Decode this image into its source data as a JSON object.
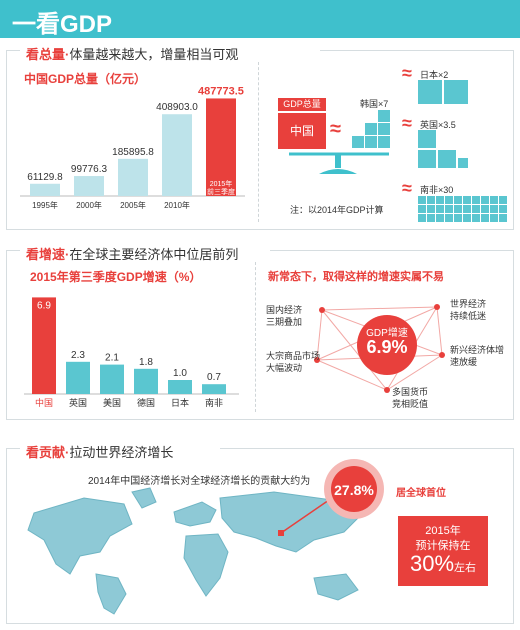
{
  "header": {
    "title": "一看GDP"
  },
  "section1": {
    "tag": "看总量",
    "dot": "·",
    "subtitle": "体量越来越大，增量相当可观",
    "chart_title": "中国GDP总量（亿元）",
    "note": "注：以2014年GDP计算",
    "gdp_label": "GDP总量",
    "china_label": "中国",
    "korea_label": "韩国×7",
    "comparisons": [
      {
        "label": "日本×2"
      },
      {
        "label": "英国×3.5"
      },
      {
        "label": "南非×30"
      }
    ]
  },
  "section2": {
    "tag": "看增速",
    "dot": "·",
    "subtitle": "在全球主要经济体中位居前列",
    "chart_title": "2015年第三季度GDP增速（%）",
    "right_title": "新常态下，取得这样的增速实属不易",
    "center_label": "GDP增速",
    "center_value": "6.9%",
    "factors": [
      "国内经济三期叠加",
      "世界经济持续低迷",
      "大宗商品市场大幅波动",
      "新兴经济体增速放缓",
      "多国货币竞相贬值"
    ]
  },
  "section3": {
    "tag": "看贡献",
    "dot": "·",
    "subtitle": "拉动世界经济增长",
    "contribution_text": "2014年中国经济增长对全球经济增长的贡献大约为",
    "contribution_value": "27.8%",
    "rank_text": "居全球首位",
    "forecast_year": "2015年",
    "forecast_text": "预计保持在",
    "forecast_value": "30%",
    "forecast_suffix": "左右"
  },
  "chart_data": [
    {
      "type": "bar",
      "title": "中国GDP总量（亿元）",
      "categories": [
        "1995年",
        "2000年",
        "2005年",
        "2010年",
        "2015年前三季度"
      ],
      "values": [
        61129.8,
        99776.3,
        185895.8,
        408903.0,
        487773.5
      ],
      "value_labels": [
        "61129.8",
        "99776.3",
        "185895.8",
        "408903.0",
        "487773.5"
      ],
      "ylim": [
        0,
        500000
      ],
      "colors": [
        "#bde3ea",
        "#bde3ea",
        "#bde3ea",
        "#bde3ea",
        "#e8403c"
      ]
    },
    {
      "type": "bar",
      "title": "2015年第三季度GDP增速（%）",
      "categories": [
        "中国",
        "英国",
        "美国",
        "德国",
        "日本",
        "南非"
      ],
      "values": [
        6.9,
        2.3,
        2.1,
        1.8,
        1.0,
        0.7
      ],
      "value_labels": [
        "6.9",
        "2.3",
        "2.1",
        "1.8",
        "1.0",
        "0.7"
      ],
      "ylim": [
        0,
        7
      ],
      "colors": [
        "#e8403c",
        "#5ac6d0",
        "#5ac6d0",
        "#5ac6d0",
        "#5ac6d0",
        "#5ac6d0"
      ]
    }
  ],
  "colors": {
    "accent": "#3fc0cc",
    "red": "#e8403c",
    "teal": "#5ac6d0",
    "pale": "#bde3ea"
  }
}
